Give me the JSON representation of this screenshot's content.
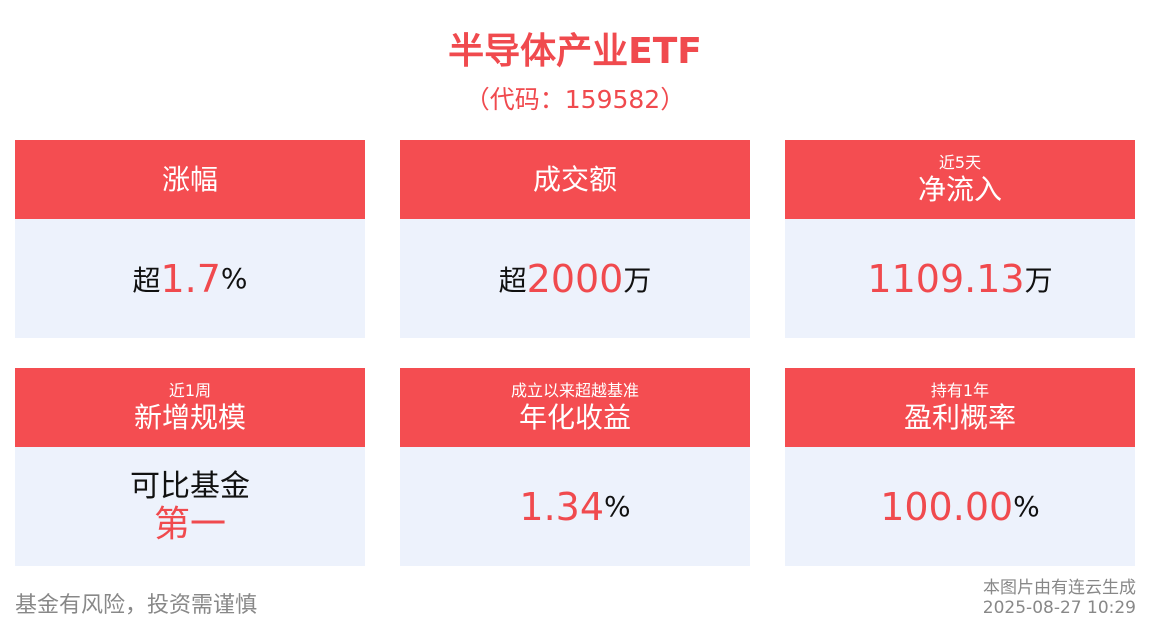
{
  "header": {
    "title": "半导体产业ETF",
    "code": "（代码：159582）"
  },
  "cards": [
    {
      "title": "涨幅",
      "value": {
        "prefix": "超",
        "number": "1.7",
        "unit": "%"
      }
    },
    {
      "title": "成交额",
      "value": {
        "prefix": "超",
        "number": "2000",
        "unit": "万"
      }
    },
    {
      "subtitle": "近5天",
      "title": "净流入",
      "value": {
        "number": "1109.13",
        "unit": "万"
      }
    },
    {
      "subtitle": "近1周",
      "title": "新增规模",
      "value": {
        "prefix": "可比基金",
        "number": "第一"
      }
    },
    {
      "subtitle": "成立以来超越基准",
      "title": "年化收益",
      "value": {
        "number": "1.34",
        "unit": "%"
      }
    },
    {
      "subtitle": "持有1年",
      "title": "盈利概率",
      "value": {
        "number": "100.00",
        "unit": "%"
      }
    }
  ],
  "footer": {
    "disclaimer": "基金有风险，投资需谨慎",
    "source": "本图片由有连云生成",
    "timestamp": "2025-08-27 10:29"
  }
}
